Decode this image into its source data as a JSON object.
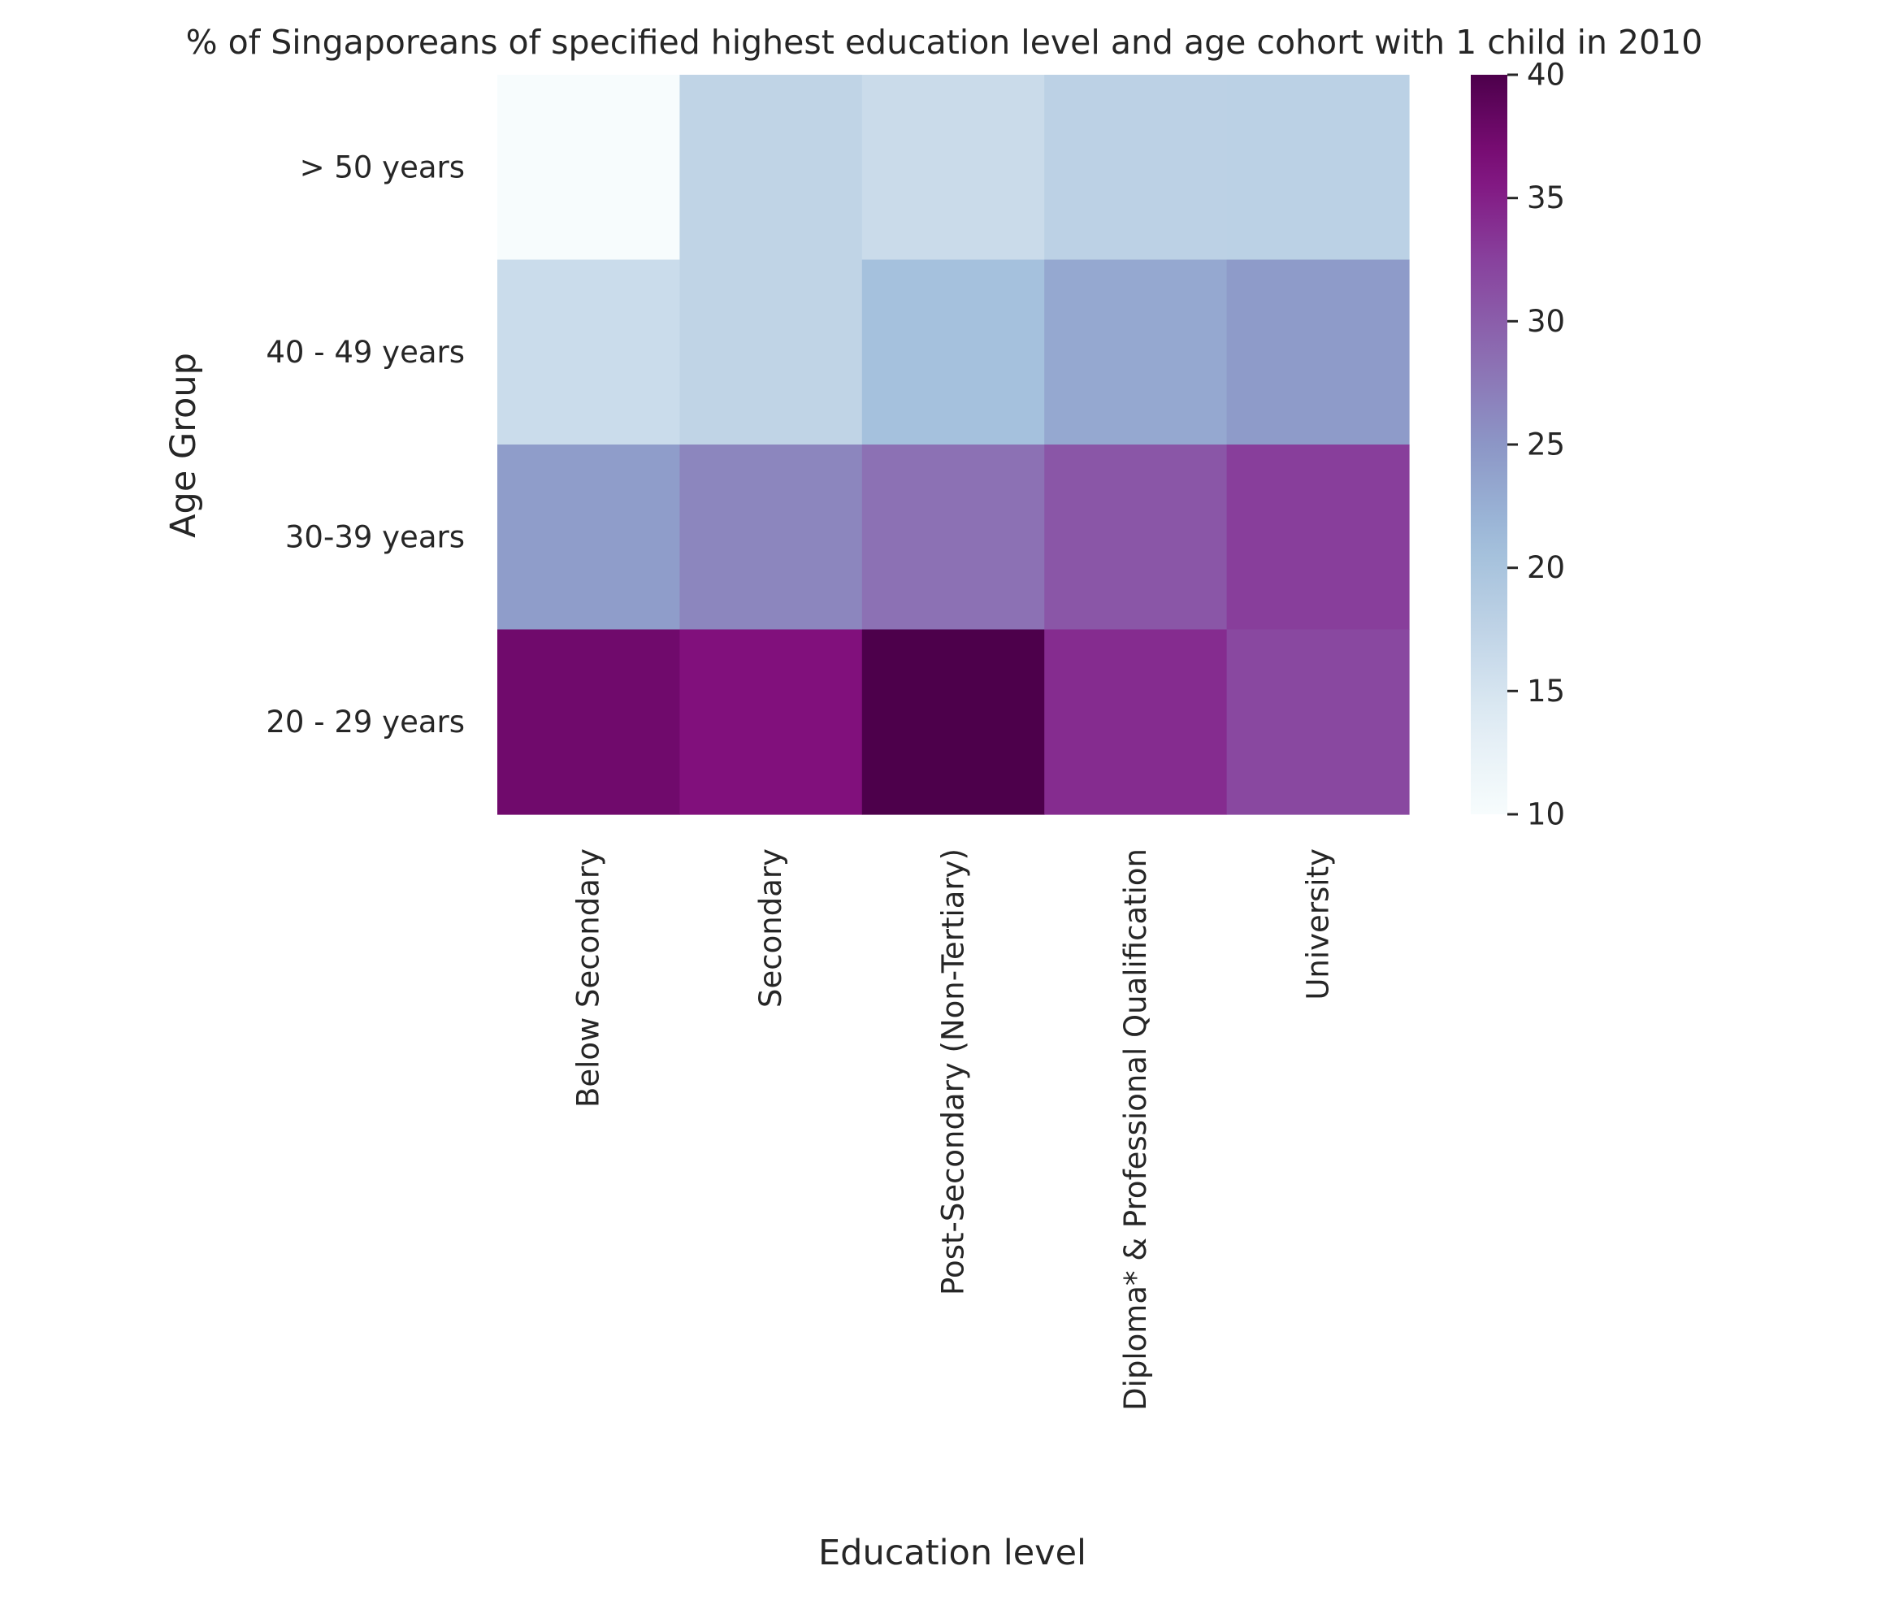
{
  "chart_data": {
    "type": "heatmap",
    "title": "% of Singaporeans of specified highest education level and age cohort with 1 child in 2010",
    "xlabel": "Education level",
    "ylabel": "Age Group",
    "x_categories": [
      "Below Secondary",
      "Secondary",
      "Post-Secondary (Non-Tertiary)",
      "Diploma* & Professional Qualification",
      "University"
    ],
    "y_categories": [
      "> 50 years",
      "40 - 49 years",
      "30-39 years",
      "20 - 29 years"
    ],
    "values": [
      [
        9.7,
        17.4,
        16.3,
        17.8,
        17.9
      ],
      [
        16.2,
        17.4,
        20.4,
        23.2,
        24.5
      ],
      [
        24.3,
        26.4,
        28.2,
        30.6,
        32.7
      ],
      [
        37.5,
        36.2,
        40.0,
        34.1,
        31.9
      ]
    ],
    "colorbar": {
      "min": 10,
      "max": 40,
      "ticks": [
        "10",
        "15",
        "20",
        "25",
        "30",
        "35",
        "40"
      ],
      "colormap": "BuPu"
    }
  }
}
